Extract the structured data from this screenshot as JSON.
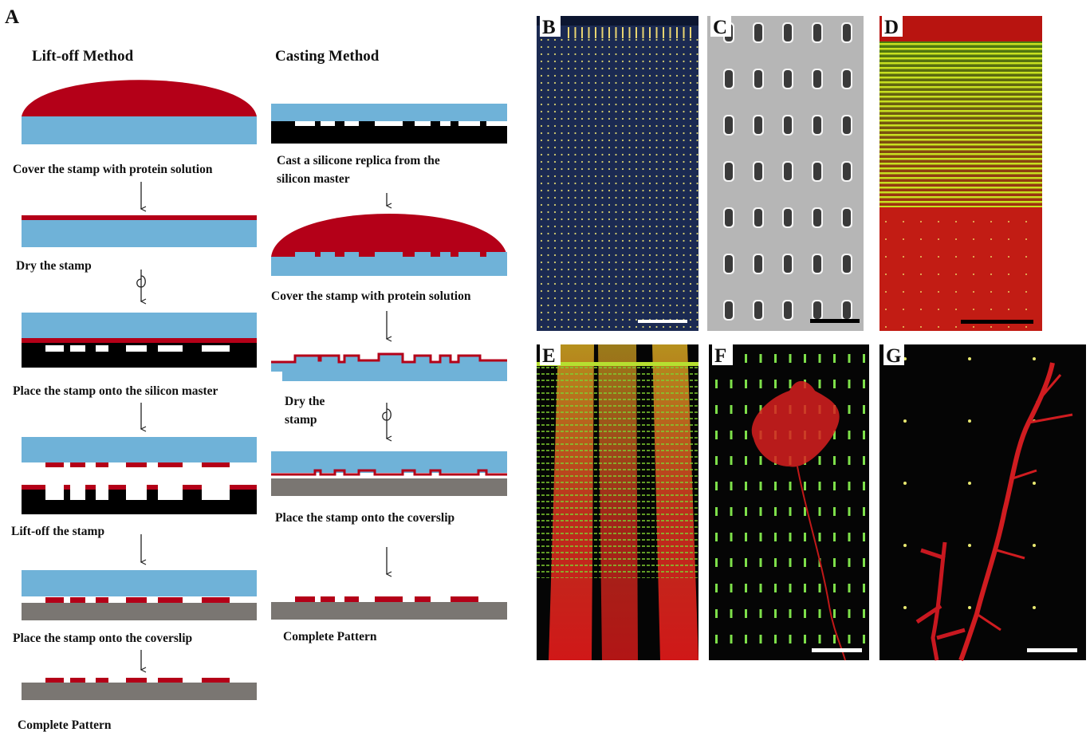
{
  "panel_a": {
    "label": "A",
    "lift_off": {
      "title": "Lift-off Method",
      "steps": [
        "Cover the stamp with protein solution",
        "Dry the stamp",
        "Place the stamp onto the silicon master",
        "Lift-off the stamp",
        "Place the stamp onto the coverslip",
        "Complete Pattern"
      ]
    },
    "casting": {
      "title": "Casting Method",
      "steps": [
        [
          "Cast a silicone replica from the",
          "silicon master"
        ],
        [
          "Cover the stamp with protein solution"
        ],
        [
          "Dry the",
          "stamp"
        ],
        [
          "Place the stamp onto the coverslip"
        ],
        [
          "Complete Pattern"
        ]
      ]
    }
  },
  "images": [
    {
      "label": "B"
    },
    {
      "label": "C"
    },
    {
      "label": "D"
    },
    {
      "label": "E"
    },
    {
      "label": "F"
    },
    {
      "label": "G"
    }
  ]
}
